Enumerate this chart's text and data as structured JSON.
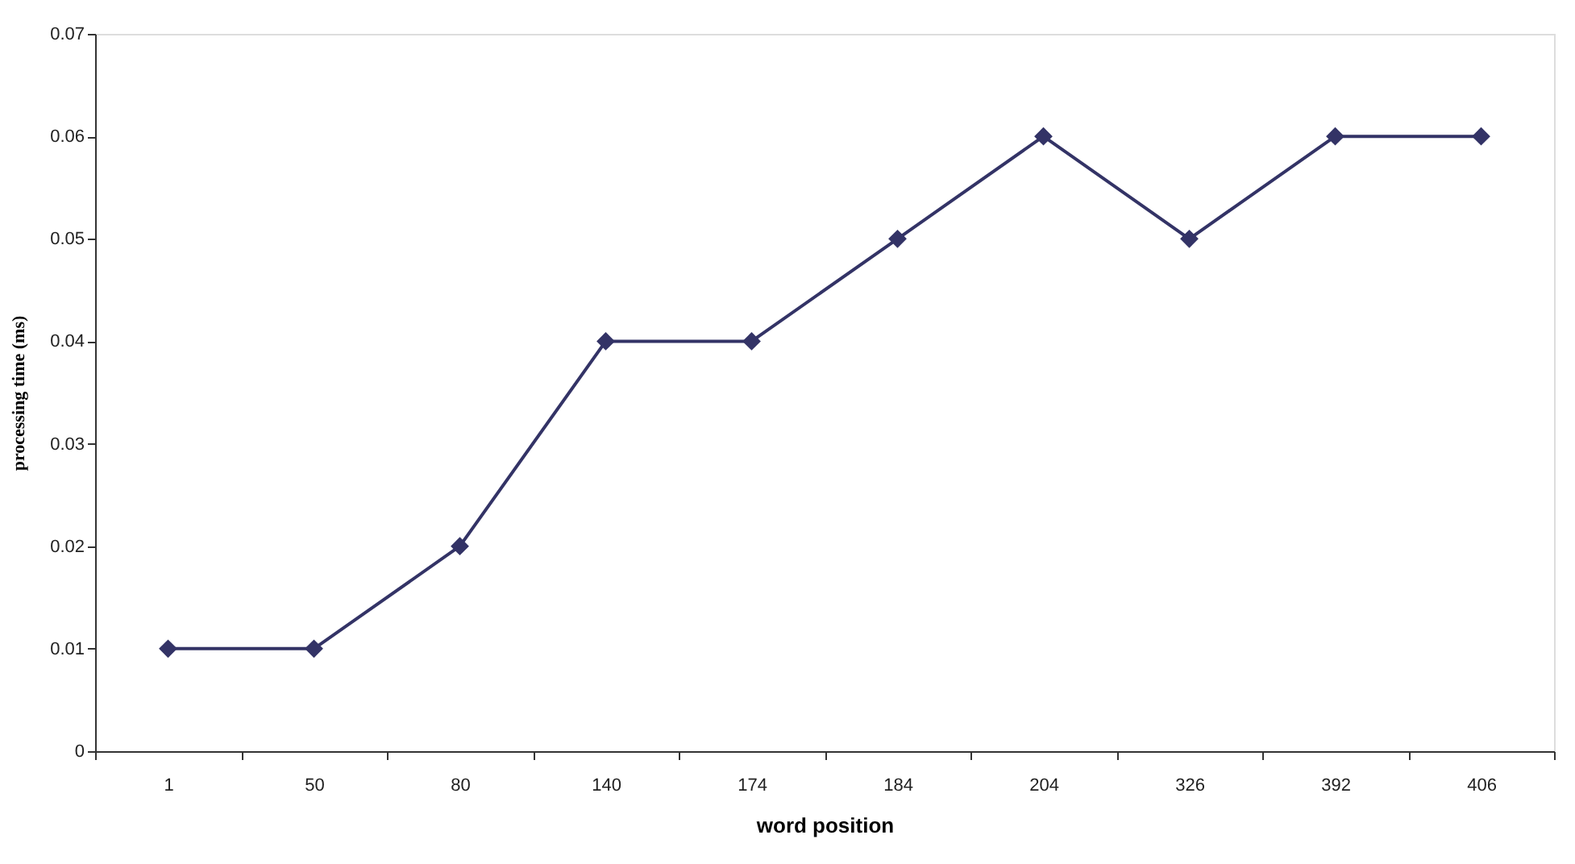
{
  "chart_data": {
    "type": "line",
    "xlabel": "word position",
    "ylabel": "processing time (ms)",
    "categories": [
      "1",
      "50",
      "80",
      "140",
      "174",
      "184",
      "204",
      "326",
      "392",
      "406"
    ],
    "series": [
      {
        "color": "#333366",
        "values": [
          0.01,
          0.01,
          0.02,
          0.04,
          0.04,
          0.05,
          0.06,
          0.05,
          0.06,
          0.06
        ]
      }
    ],
    "ylim": [
      0,
      0.07
    ],
    "yticks": [
      0,
      0.01,
      0.02,
      0.03,
      0.04,
      0.05,
      0.06,
      0.07
    ],
    "marker": "diamond",
    "line_style": "solid",
    "grid": false,
    "legend": false
  }
}
